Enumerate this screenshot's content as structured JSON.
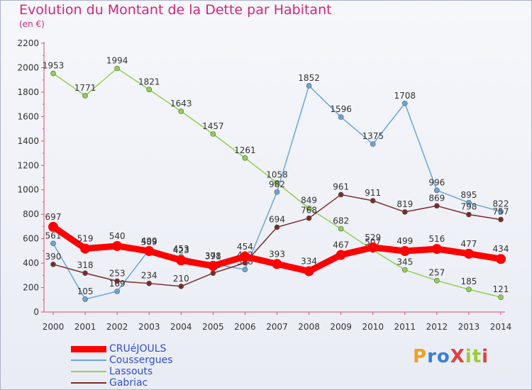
{
  "header": {
    "title": "Evolution du Montant de la Dette par Habitant",
    "subtitle": "(en €)"
  },
  "logo": {
    "text": "ProXiti",
    "colors": [
      "#f0a020",
      "#3a7ed0",
      "#3a7ed0",
      "#e04040",
      "#9acd32",
      "#9acd32",
      "#e04040"
    ]
  },
  "chart_data": {
    "type": "line",
    "title": "Evolution du Montant de la Dette par Habitant",
    "subtitle": "(en €)",
    "x": [
      2000,
      2001,
      2002,
      2003,
      2004,
      2005,
      2006,
      2007,
      2008,
      2009,
      2010,
      2011,
      2012,
      2013,
      2014
    ],
    "ylim": [
      0,
      2200
    ],
    "yticks": [
      0,
      200,
      400,
      600,
      800,
      1000,
      1200,
      1400,
      1600,
      1800,
      2000,
      2200
    ],
    "grid": false,
    "legend": "bottom-left",
    "series": [
      {
        "name": "Lassouts",
        "color": "#8fd14f",
        "width": 1.5,
        "marker": 3.5,
        "values": [
          1953,
          1771,
          1994,
          1821,
          1643,
          1457,
          1261,
          1058,
          849,
          682,
          507,
          345,
          257,
          185,
          121
        ]
      },
      {
        "name": "Coussergues",
        "color": "#6aa6d8",
        "width": 1.5,
        "marker": 3.5,
        "values": [
          561,
          105,
          169,
          509,
          453,
          391,
          348,
          982,
          1852,
          1596,
          1375,
          1708,
          996,
          895,
          822
        ]
      },
      {
        "name": "Gabriac",
        "color": "#7a2a2a",
        "width": 1.5,
        "marker": 3.5,
        "values": [
          390,
          318,
          253,
          234,
          210,
          318,
          402,
          694,
          768,
          961,
          911,
          819,
          869,
          798,
          757
        ]
      },
      {
        "name": "CRUéJOULS",
        "color": "#ff0000",
        "width": 9,
        "marker": 7,
        "values": [
          697,
          519,
          540,
          499,
          423,
          378,
          454,
          393,
          334,
          467,
          529,
          499,
          516,
          477,
          434
        ]
      }
    ],
    "legend_order": [
      "CRUéJOULS",
      "Coussergues",
      "Lassouts",
      "Gabriac"
    ]
  }
}
